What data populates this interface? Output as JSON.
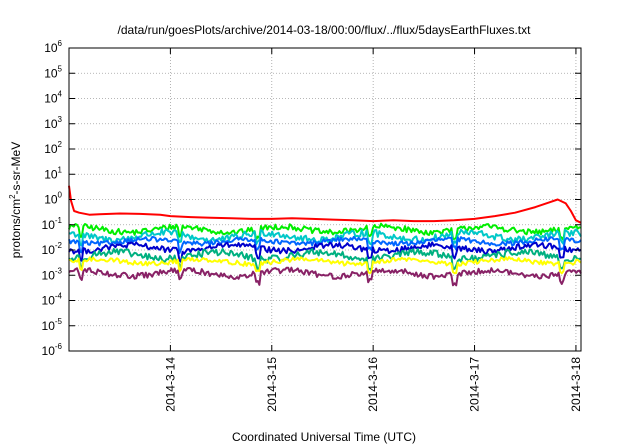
{
  "chart_data": {
    "type": "line",
    "title": "/data/run/goesPlots/archive/2014-03-18/00:00/flux/../flux/5daysEarthFluxes.txt",
    "xlabel": "Coordinated Universal Time (UTC)",
    "ylabel": {
      "prefix": "protons/cm",
      "sup": "2",
      "suffix": "-s-sr-MeV"
    },
    "y_scale": "log",
    "ylim_exponents": [
      -6,
      6
    ],
    "y_tick_exponents": [
      -6,
      -5,
      -4,
      -3,
      -2,
      -1,
      0,
      1,
      2,
      3,
      4,
      5,
      6
    ],
    "y_tick_base": "10",
    "x_range_days": [
      13.0,
      18.05
    ],
    "x_ticks": [
      {
        "label": "2014-3-14",
        "day": 14
      },
      {
        "label": "2014-3-15",
        "day": 15
      },
      {
        "label": "2014-3-16",
        "day": 16
      },
      {
        "label": "2014-3-17",
        "day": 17
      },
      {
        "label": "2014-3-18",
        "day": 18
      }
    ],
    "grid": true,
    "series": [
      {
        "color": "#ff0000",
        "kind": "red",
        "points": [
          [
            13.0,
            3.5
          ],
          [
            13.02,
            0.9
          ],
          [
            13.05,
            0.35
          ],
          [
            13.1,
            0.3
          ],
          [
            13.2,
            0.25
          ],
          [
            13.3,
            0.26
          ],
          [
            13.5,
            0.28
          ],
          [
            13.7,
            0.27
          ],
          [
            13.9,
            0.25
          ],
          [
            14.0,
            0.22
          ],
          [
            14.2,
            0.2
          ],
          [
            14.4,
            0.19
          ],
          [
            14.6,
            0.18
          ],
          [
            14.8,
            0.17
          ],
          [
            15.0,
            0.17
          ],
          [
            15.2,
            0.18
          ],
          [
            15.4,
            0.17
          ],
          [
            15.6,
            0.16
          ],
          [
            15.8,
            0.15
          ],
          [
            16.0,
            0.14
          ],
          [
            16.2,
            0.15
          ],
          [
            16.4,
            0.14
          ],
          [
            16.6,
            0.14
          ],
          [
            16.8,
            0.15
          ],
          [
            17.0,
            0.17
          ],
          [
            17.2,
            0.22
          ],
          [
            17.4,
            0.3
          ],
          [
            17.6,
            0.5
          ],
          [
            17.75,
            0.8
          ],
          [
            17.82,
            1.0
          ],
          [
            17.9,
            0.7
          ],
          [
            17.95,
            0.35
          ],
          [
            18.0,
            0.15
          ],
          [
            18.05,
            0.12
          ]
        ]
      },
      {
        "color": "#00ee00",
        "kind": "noisy",
        "level": 0.065
      },
      {
        "color": "#00c8c8",
        "kind": "noisy",
        "level": 0.035
      },
      {
        "color": "#0066ff",
        "kind": "noisy",
        "level": 0.022
      },
      {
        "color": "#0000cc",
        "kind": "noisy",
        "level": 0.012
      },
      {
        "color": "#00b080",
        "kind": "noisy",
        "level": 0.006
      },
      {
        "color": "#ffff00",
        "kind": "noisy",
        "level": 0.0035
      },
      {
        "color": "#882266",
        "kind": "noisy",
        "level": 0.0012
      }
    ]
  }
}
